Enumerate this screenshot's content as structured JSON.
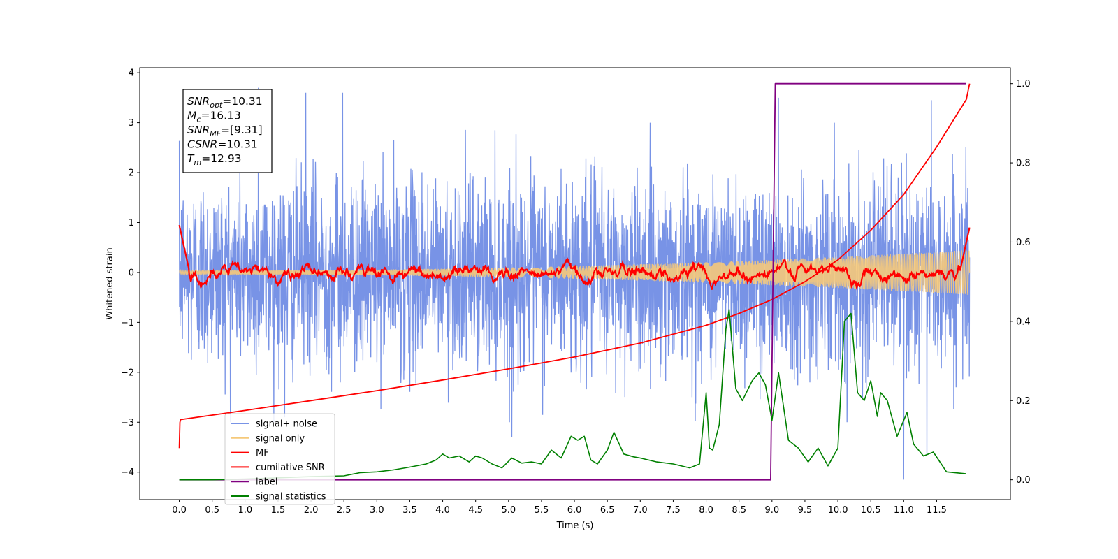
{
  "chart_data": {
    "type": "line",
    "xlabel": "Time (s)",
    "ylabel": "Whitened strain",
    "xlim": [
      -0.6,
      12.62
    ],
    "ylim": [
      -4.55,
      4.1
    ],
    "y2lim": [
      -0.05,
      1.04
    ],
    "xticks": [
      "0.0",
      "0.5",
      "1.0",
      "1.5",
      "2.0",
      "2.5",
      "3.0",
      "3.5",
      "4.0",
      "4.5",
      "5.0",
      "5.5",
      "6.0",
      "6.5",
      "7.0",
      "7.5",
      "8.0",
      "8.5",
      "9.0",
      "9.5",
      "10.0",
      "10.5",
      "11.0",
      "11.5"
    ],
    "yticks": [
      "4",
      "3",
      "2",
      "1",
      "0",
      "−1",
      "−2",
      "−3",
      "−4"
    ],
    "y2ticks": [
      "1.0",
      "0.8",
      "0.6",
      "0.4",
      "0.2",
      "0.0"
    ],
    "grid": false,
    "legend_position": "lower-left",
    "annotation": [
      {
        "label": "SNR",
        "sub": "opt",
        "value": "=10.31"
      },
      {
        "label": "M",
        "sub": "c",
        "value": "=16.13"
      },
      {
        "label": "SNR",
        "sub": "MF",
        "value": "=[9.31]"
      },
      {
        "label": "CSNR",
        "sub": "",
        "value": "=10.31"
      },
      {
        "label": "T",
        "sub": "m",
        "value": "=12.93"
      }
    ],
    "series": [
      {
        "name": "signal+ noise",
        "color": "#7893e6",
        "axis": "left",
        "x_range": [
          0,
          12.0
        ],
        "amplitude_sd": 0.95,
        "notable_peaks": [
          [
            1.2,
            3.7
          ],
          [
            1.92,
            3.6
          ],
          [
            2.48,
            3.6
          ],
          [
            9.1,
            3.5
          ],
          [
            11.42,
            3.45
          ],
          [
            1.6,
            -2.9
          ],
          [
            5.05,
            -3.3
          ],
          [
            11.0,
            -4.15
          ],
          [
            11.35,
            -3.65
          ]
        ]
      },
      {
        "name": "signal only",
        "color": "#f5c97a",
        "axis": "left",
        "x_range": [
          0,
          12.0
        ],
        "start_amplitude": 0.04,
        "end_amplitude": 0.45
      },
      {
        "name": "MF",
        "color": "#ff0000",
        "axis": "left",
        "x_range": [
          0,
          12.0
        ],
        "start_value": 0.95,
        "baseline": 0.0,
        "end_value": 0.9
      },
      {
        "name": "cumilative SNR",
        "color": "#ff0000",
        "axis": "right",
        "x": [
          0.0,
          0.01,
          0.02,
          1,
          2,
          3,
          4,
          5,
          6,
          7,
          8,
          8.5,
          9,
          9.5,
          10,
          10.5,
          11,
          11.5,
          11.8,
          11.95,
          12.0
        ],
        "values": [
          0.08,
          0.145,
          0.152,
          0.175,
          0.2,
          0.225,
          0.252,
          0.28,
          0.31,
          0.345,
          0.39,
          0.42,
          0.455,
          0.5,
          0.555,
          0.63,
          0.72,
          0.84,
          0.92,
          0.96,
          1.0
        ]
      },
      {
        "name": "label",
        "color": "#800080",
        "axis": "right",
        "x": [
          0,
          8.98,
          9.05,
          11.95
        ],
        "values": [
          0.0,
          0.0,
          1.0,
          1.0
        ]
      },
      {
        "name": "signal statistics",
        "color": "#008000",
        "axis": "right",
        "x": [
          0,
          0.5,
          1,
          1.5,
          2,
          2.5,
          2.75,
          3,
          3.25,
          3.5,
          3.75,
          3.9,
          4.0,
          4.1,
          4.25,
          4.4,
          4.5,
          4.6,
          4.75,
          4.9,
          5.05,
          5.2,
          5.35,
          5.5,
          5.65,
          5.8,
          5.95,
          6.05,
          6.15,
          6.25,
          6.35,
          6.5,
          6.6,
          6.75,
          6.9,
          7.0,
          7.25,
          7.5,
          7.75,
          7.9,
          8.0,
          8.05,
          8.1,
          8.2,
          8.3,
          8.35,
          8.45,
          8.55,
          8.7,
          8.8,
          8.9,
          9.0,
          9.1,
          9.25,
          9.4,
          9.55,
          9.7,
          9.85,
          10.0,
          10.1,
          10.2,
          10.3,
          10.4,
          10.5,
          10.6,
          10.65,
          10.75,
          10.9,
          11.05,
          11.15,
          11.3,
          11.45,
          11.65,
          11.95
        ],
        "values": [
          0.0,
          0.0,
          0.002,
          0.005,
          0.008,
          0.01,
          0.018,
          0.02,
          0.025,
          0.032,
          0.04,
          0.05,
          0.065,
          0.055,
          0.06,
          0.045,
          0.06,
          0.055,
          0.04,
          0.03,
          0.055,
          0.042,
          0.045,
          0.04,
          0.075,
          0.055,
          0.11,
          0.1,
          0.11,
          0.05,
          0.04,
          0.075,
          0.12,
          0.065,
          0.058,
          0.055,
          0.045,
          0.04,
          0.03,
          0.04,
          0.22,
          0.08,
          0.075,
          0.14,
          0.38,
          0.43,
          0.23,
          0.2,
          0.25,
          0.27,
          0.24,
          0.15,
          0.27,
          0.1,
          0.08,
          0.045,
          0.08,
          0.035,
          0.08,
          0.4,
          0.42,
          0.22,
          0.2,
          0.25,
          0.16,
          0.22,
          0.2,
          0.11,
          0.17,
          0.09,
          0.06,
          0.07,
          0.02,
          0.015
        ]
      }
    ]
  }
}
